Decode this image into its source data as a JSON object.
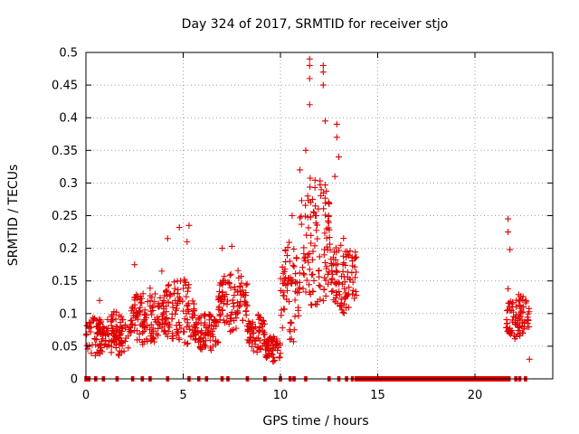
{
  "chart_data": {
    "type": "scatter",
    "title": "Day 324 of 2017, SRMTID for receiver stjo",
    "xlabel": "GPS time / hours",
    "ylabel": "SRMTID / TECUs",
    "xlim": [
      0,
      24
    ],
    "ylim": [
      0,
      0.5
    ],
    "x_ticks": [
      0,
      5,
      10,
      15,
      20
    ],
    "y_ticks": [
      0,
      0.05,
      0.1,
      0.15,
      0.2,
      0.25,
      0.3,
      0.35,
      0.4,
      0.45,
      0.5
    ],
    "grid": true,
    "marker": "plus",
    "color": "#e00000",
    "series": [
      {
        "name": "SRMTID",
        "segments": [
          {
            "x_start": 0.0,
            "x_end": 1.0,
            "baseline": 0.065,
            "amplitude": 0.03
          },
          {
            "x_start": 1.0,
            "x_end": 2.3,
            "baseline": 0.07,
            "amplitude": 0.035
          },
          {
            "x_start": 2.3,
            "x_end": 4.0,
            "baseline": 0.095,
            "amplitude": 0.045
          },
          {
            "x_start": 4.0,
            "x_end": 5.6,
            "baseline": 0.1,
            "amplitude": 0.06
          },
          {
            "x_start": 5.6,
            "x_end": 6.8,
            "baseline": 0.07,
            "amplitude": 0.03
          },
          {
            "x_start": 6.8,
            "x_end": 8.3,
            "baseline": 0.12,
            "amplitude": 0.05
          },
          {
            "x_start": 8.3,
            "x_end": 9.2,
            "baseline": 0.07,
            "amplitude": 0.03
          },
          {
            "x_start": 9.2,
            "x_end": 10.0,
            "baseline": 0.045,
            "amplitude": 0.02
          },
          {
            "x_start": 10.0,
            "x_end": 11.0,
            "baseline": 0.13,
            "amplitude": 0.08
          },
          {
            "x_start": 11.0,
            "x_end": 12.6,
            "baseline": 0.21,
            "amplitude": 0.11
          },
          {
            "x_start": 12.6,
            "x_end": 13.9,
            "baseline": 0.16,
            "amplitude": 0.06
          },
          {
            "x_start": 21.6,
            "x_end": 22.8,
            "baseline": 0.095,
            "amplitude": 0.035
          }
        ],
        "notable_points": [
          {
            "x": 11.5,
            "y": 0.49
          },
          {
            "x": 11.5,
            "y": 0.48
          },
          {
            "x": 12.2,
            "y": 0.48
          },
          {
            "x": 12.2,
            "y": 0.47
          },
          {
            "x": 11.5,
            "y": 0.46
          },
          {
            "x": 12.2,
            "y": 0.45
          },
          {
            "x": 11.5,
            "y": 0.42
          },
          {
            "x": 12.3,
            "y": 0.395
          },
          {
            "x": 12.9,
            "y": 0.39
          },
          {
            "x": 11.3,
            "y": 0.35
          },
          {
            "x": 12.9,
            "y": 0.37
          },
          {
            "x": 13.0,
            "y": 0.34
          },
          {
            "x": 11.0,
            "y": 0.32
          },
          {
            "x": 12.8,
            "y": 0.31
          },
          {
            "x": 10.6,
            "y": 0.25
          },
          {
            "x": 11.4,
            "y": 0.28
          },
          {
            "x": 4.8,
            "y": 0.232
          },
          {
            "x": 5.3,
            "y": 0.235
          },
          {
            "x": 5.2,
            "y": 0.21
          },
          {
            "x": 4.2,
            "y": 0.215
          },
          {
            "x": 7.0,
            "y": 0.2
          },
          {
            "x": 7.5,
            "y": 0.203
          },
          {
            "x": 2.5,
            "y": 0.175
          },
          {
            "x": 3.9,
            "y": 0.165
          },
          {
            "x": 21.7,
            "y": 0.245
          },
          {
            "x": 21.7,
            "y": 0.225
          },
          {
            "x": 21.8,
            "y": 0.198
          },
          {
            "x": 21.7,
            "y": 0.138
          },
          {
            "x": 22.3,
            "y": 0.12
          },
          {
            "x": 22.5,
            "y": 0.11
          },
          {
            "x": 22.8,
            "y": 0.03
          },
          {
            "x": 0.7,
            "y": 0.12
          },
          {
            "x": 13.5,
            "y": 0.13
          },
          {
            "x": 13.9,
            "y": 0.128
          }
        ],
        "zero_points_x": [
          0.0,
          0.15,
          0.5,
          0.9,
          1.6,
          2.4,
          2.9,
          3.3,
          4.2,
          5.3,
          5.8,
          6.2,
          7.0,
          7.3,
          8.3,
          9.2,
          10.0,
          10.5,
          10.7,
          11.3,
          12.5,
          13.0,
          13.4,
          13.7,
          13.9,
          14.05,
          21.6,
          21.75,
          22.1,
          22.3,
          22.6
        ],
        "zero_runs": [
          [
            14.0,
            21.6
          ]
        ]
      }
    ]
  }
}
